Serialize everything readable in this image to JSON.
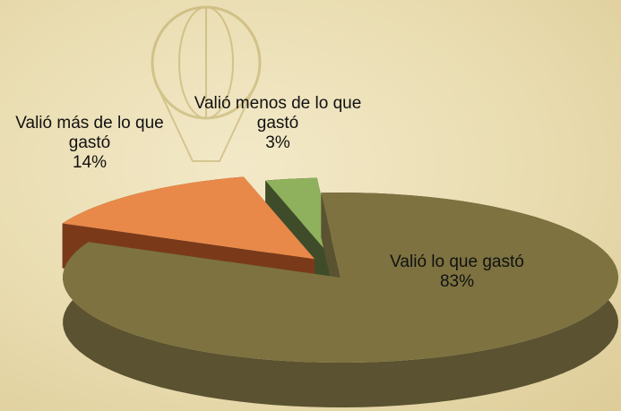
{
  "chart_data": {
    "type": "pie",
    "categories": [
      "Valió lo que gastó",
      "Valió más de lo que gastó",
      "Valió menos de lo que gastó"
    ],
    "values": [
      83,
      14,
      3
    ],
    "value_labels": [
      "83%",
      "14%",
      "3%"
    ],
    "colors": [
      "#7d7240",
      "#e8894a",
      "#8fb05c"
    ],
    "side_colors": [
      "#5a5230",
      "#7a3a1a",
      "#3f4c2a"
    ]
  }
}
